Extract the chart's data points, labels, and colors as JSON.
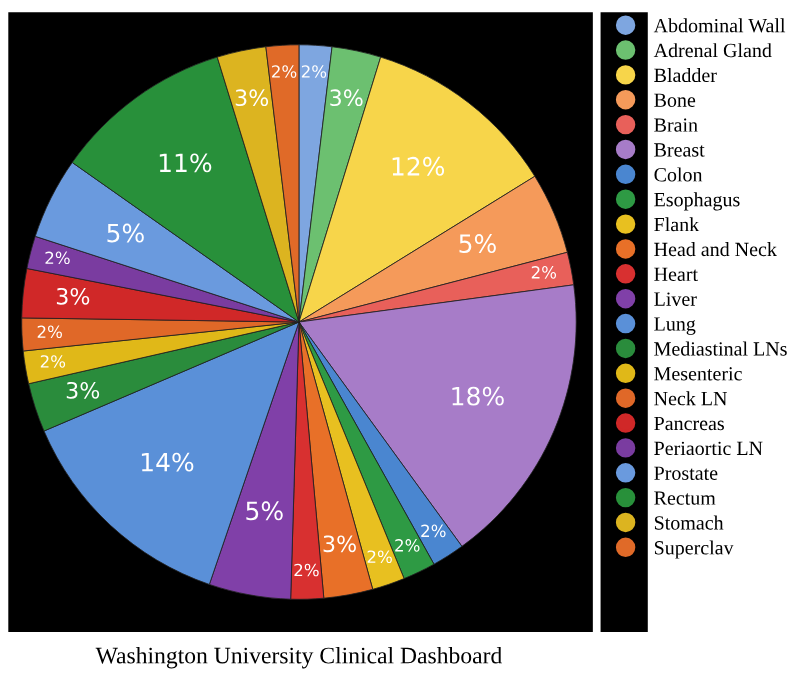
{
  "chart_data": {
    "type": "pie",
    "title": "Washington University Clinical Dashboard",
    "categories": [
      "Abdominal Wall",
      "Adrenal Gland",
      "Bladder",
      "Bone",
      "Brain",
      "Breast",
      "Colon",
      "Esophagus",
      "Flank",
      "Head and Neck",
      "Heart",
      "Liver",
      "Lung",
      "Mediastinal LNs",
      "Mesenteric",
      "Neck LN",
      "Pancreas",
      "Periaortic LN",
      "Prostate",
      "Rectum",
      "Stomach",
      "Superclav"
    ],
    "values": [
      2,
      3,
      12,
      5,
      2,
      18,
      2,
      2,
      2,
      3,
      2,
      5,
      14,
      3,
      2,
      2,
      3,
      2,
      5,
      11,
      3,
      2
    ],
    "value_labels": [
      "2%",
      "3%",
      "12%",
      "5%",
      "2%",
      "18%",
      "2%",
      "2%",
      "2%",
      "3%",
      "2%",
      "5%",
      "14%",
      "3%",
      "2%",
      "2%",
      "3%",
      "2%",
      "5%",
      "11%",
      "3%",
      "2%"
    ],
    "colors": [
      "#7ea6e0",
      "#6cc070",
      "#f7d54a",
      "#f59a5a",
      "#e8605a",
      "#a77cc8",
      "#4a86d0",
      "#2e9a44",
      "#e8c020",
      "#e87028",
      "#d83030",
      "#8040a8",
      "#5a90d8",
      "#2a8c3c",
      "#e0b818",
      "#e06828",
      "#d02828",
      "#7a3ca0",
      "#6a9ade",
      "#28903a",
      "#dcb420",
      "#e06a28"
    ],
    "legend": "right"
  }
}
